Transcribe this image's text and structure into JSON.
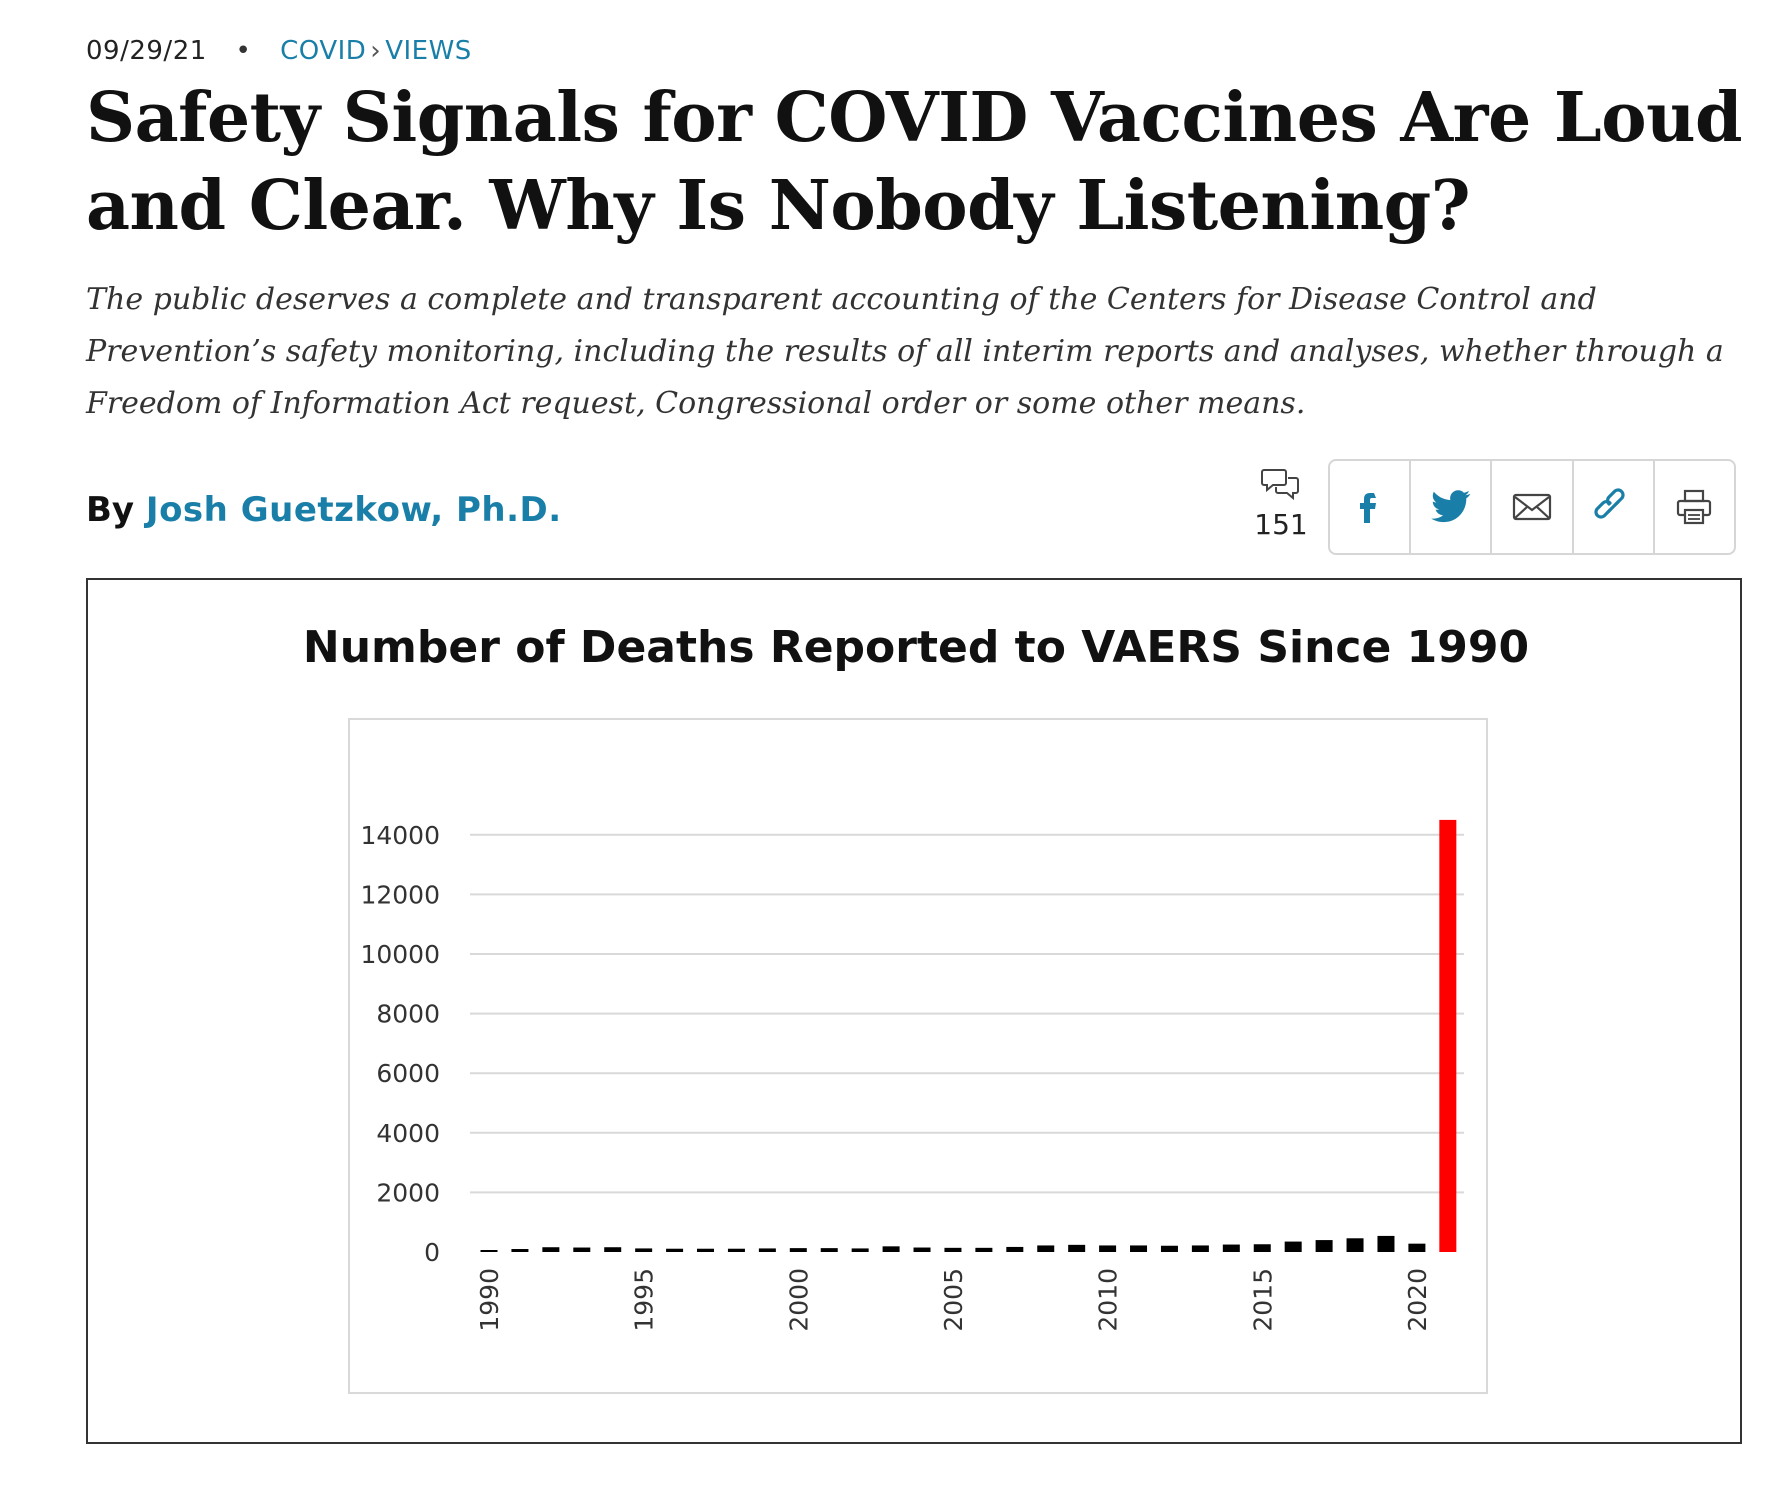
{
  "meta": {
    "date": "09/29/21",
    "separator": "•",
    "section": "COVID",
    "chevron": "›",
    "subsection": "VIEWS"
  },
  "headline": "Safety Signals for COVID Vaccines Are Loud and Clear. Why Is Nobody Listening?",
  "dek": "The public deserves a complete and transparent accounting of the Centers for Disease Control and Prevention’s safety monitoring, including the results of all interim reports and analyses, whether through a Freedom of Information Act request, Congressional order or some other means.",
  "byline": {
    "prefix": "By",
    "author": "Josh Guetzkow, Ph.D."
  },
  "comments": {
    "icon": "comments-icon",
    "count": "151"
  },
  "share": {
    "buttons": [
      {
        "icon": "facebook-icon"
      },
      {
        "icon": "twitter-icon"
      },
      {
        "icon": "email-icon"
      },
      {
        "icon": "link-icon"
      },
      {
        "icon": "print-icon"
      }
    ],
    "color": "#1a7fa8"
  },
  "chart_data": {
    "type": "bar",
    "title": "Number of Deaths Reported to VAERS Since 1990",
    "xlabel": "",
    "ylabel": "",
    "ylim": [
      0,
      15000
    ],
    "yticks": [
      0,
      2000,
      4000,
      6000,
      8000,
      10000,
      12000,
      14000
    ],
    "xtick_labels": [
      "1990",
      "1995",
      "2000",
      "2005",
      "2010",
      "2015",
      "2020"
    ],
    "categories": [
      1990,
      1991,
      1992,
      1993,
      1994,
      1995,
      1996,
      1997,
      1998,
      1999,
      2000,
      2001,
      2002,
      2003,
      2004,
      2005,
      2006,
      2007,
      2008,
      2009,
      2010,
      2011,
      2012,
      2013,
      2014,
      2015,
      2016,
      2017,
      2018,
      2019,
      2020,
      2021
    ],
    "values": [
      30,
      100,
      160,
      150,
      160,
      120,
      110,
      110,
      110,
      120,
      130,
      130,
      120,
      190,
      150,
      140,
      140,
      170,
      220,
      240,
      220,
      220,
      210,
      220,
      250,
      260,
      350,
      400,
      460,
      540,
      280,
      14500
    ],
    "colors": {
      "default": "#000000",
      "highlight": "#ff0000"
    },
    "highlight_index": 31
  }
}
